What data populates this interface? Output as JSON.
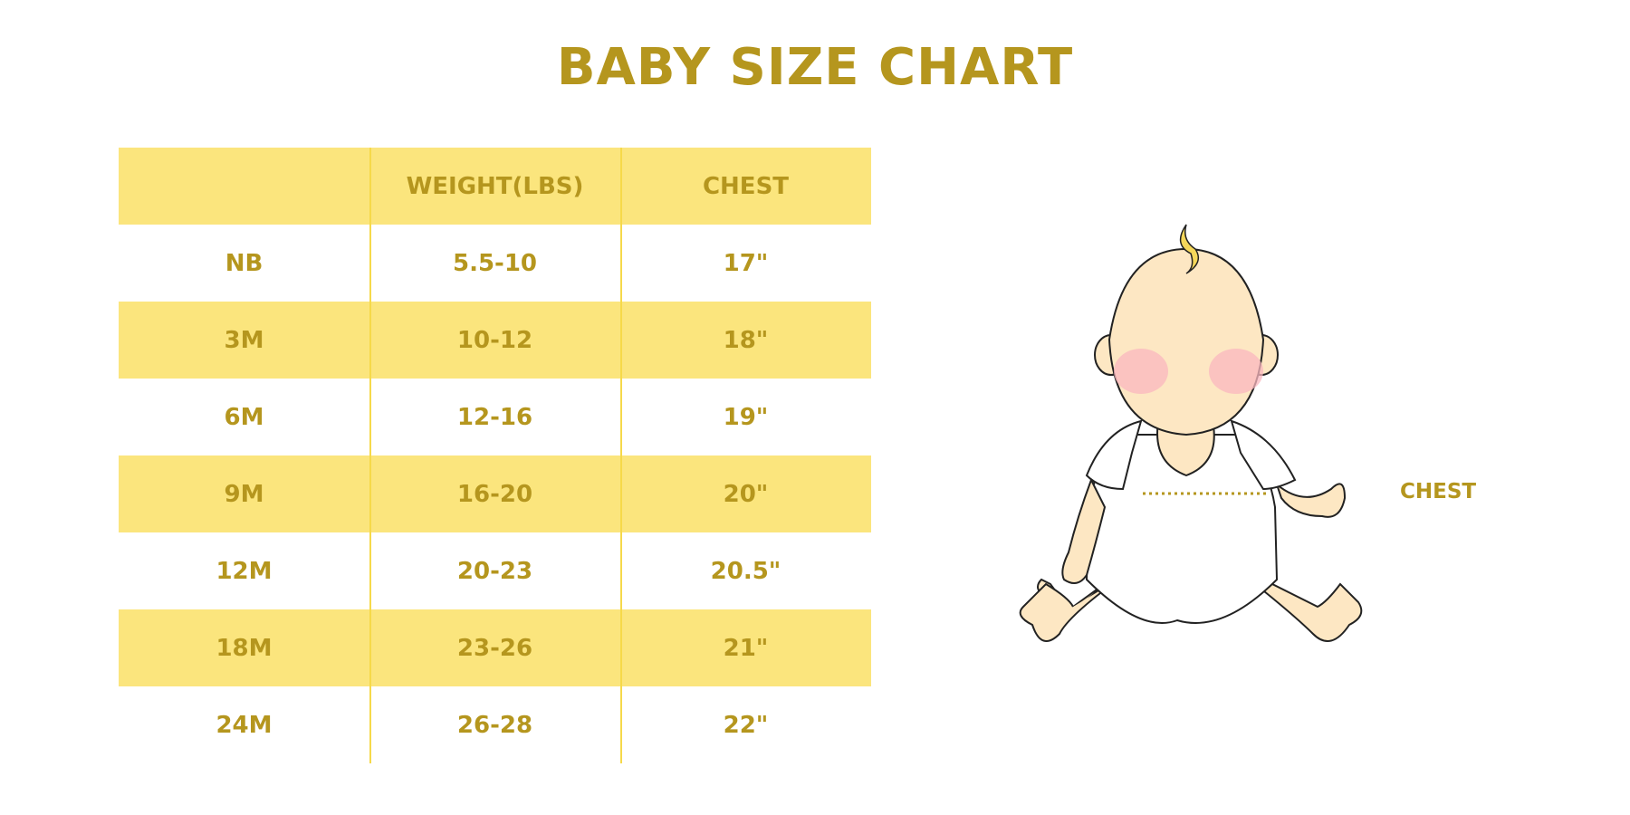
{
  "title": "BABY SIZE CHART",
  "table": {
    "headers": [
      "",
      "WEIGHT(LBS)",
      "CHEST"
    ],
    "rows": [
      [
        "NB",
        "5.5-10",
        "17\""
      ],
      [
        "3M",
        "10-12",
        "18\""
      ],
      [
        "6M",
        "12-16",
        "19\""
      ],
      [
        "9M",
        "16-20",
        "20\""
      ],
      [
        "12M",
        "20-23",
        "20.5\""
      ],
      [
        "18M",
        "23-26",
        "21\""
      ],
      [
        "24M",
        "26-28",
        "22\""
      ]
    ]
  },
  "illustration": {
    "chest_label": "CHEST"
  },
  "colors": {
    "text": "#b5961e",
    "row_highlight": "#fbe57d",
    "skin": "#fde7c3",
    "cheek": "#f9b7bf"
  }
}
